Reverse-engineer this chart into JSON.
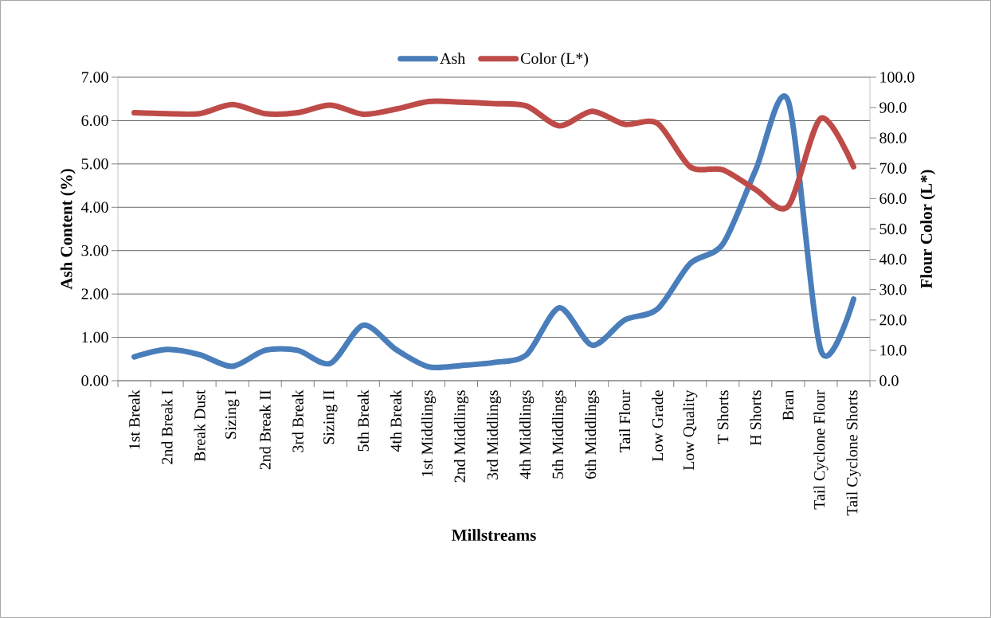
{
  "chart_data": {
    "type": "line",
    "xlabel": "Millstreams",
    "ylabel": "Ash Content (%)",
    "y2label": "Flour Color (L*)",
    "categories": [
      "1st Break",
      "2nd Break I",
      "Break Dust",
      "Sizing I",
      "2nd Break II",
      "3rd Break",
      "Sizing II",
      "5th Break",
      "4th Break",
      "1st Middlings",
      "2nd Middlings",
      "3rd Middlings",
      "4th Middlings",
      "5th Middlings",
      "6th Middlings",
      "Tail Flour",
      "Low Grade",
      "Low Quality",
      "T Shorts",
      "H Shorts",
      "Bran",
      "Tail Cyclone Flour",
      "Tail Cyclone Shorts"
    ],
    "series": [
      {
        "name": "Ash",
        "color": "#4a7ebb",
        "values": [
          0.55,
          0.72,
          0.6,
          0.33,
          0.7,
          0.7,
          0.4,
          1.28,
          0.72,
          0.32,
          0.35,
          0.42,
          0.6,
          1.68,
          0.82,
          1.4,
          1.65,
          2.7,
          3.15,
          4.85,
          6.45,
          0.7,
          1.88
        ]
      },
      {
        "name": "Color (L*)",
        "color": "#be4b48",
        "axis": "y2",
        "values": [
          88.3,
          88.0,
          88.0,
          91.0,
          88.0,
          88.3,
          90.8,
          87.8,
          89.5,
          92.0,
          91.8,
          91.3,
          90.5,
          84.0,
          88.8,
          84.5,
          84.8,
          70.5,
          69.5,
          63.0,
          57.5,
          86.5,
          70.5
        ]
      }
    ],
    "ylim": [
      0,
      7
    ],
    "yticks": [
      {
        "value": 0,
        "label": "0.00"
      },
      {
        "value": 1,
        "label": "1.00"
      },
      {
        "value": 2,
        "label": "2.00"
      },
      {
        "value": 3,
        "label": "3.00"
      },
      {
        "value": 4,
        "label": "4.00"
      },
      {
        "value": 5,
        "label": "5.00"
      },
      {
        "value": 6,
        "label": "6.00"
      },
      {
        "value": 7,
        "label": "7.00"
      }
    ],
    "y2lim": [
      0,
      100
    ],
    "y2ticks": [
      {
        "value": 0,
        "label": "0.0"
      },
      {
        "value": 10,
        "label": "10.0"
      },
      {
        "value": 20,
        "label": "20.0"
      },
      {
        "value": 30,
        "label": "30.0"
      },
      {
        "value": 40,
        "label": "40.0"
      },
      {
        "value": 50,
        "label": "50.0"
      },
      {
        "value": 60,
        "label": "60.0"
      },
      {
        "value": 70,
        "label": "70.0"
      },
      {
        "value": 80,
        "label": "80.0"
      },
      {
        "value": 90,
        "label": "90.0"
      },
      {
        "value": 100,
        "label": "100.0"
      }
    ],
    "grid": "y",
    "legend": "top",
    "marker": "none",
    "line_style": "solid"
  }
}
